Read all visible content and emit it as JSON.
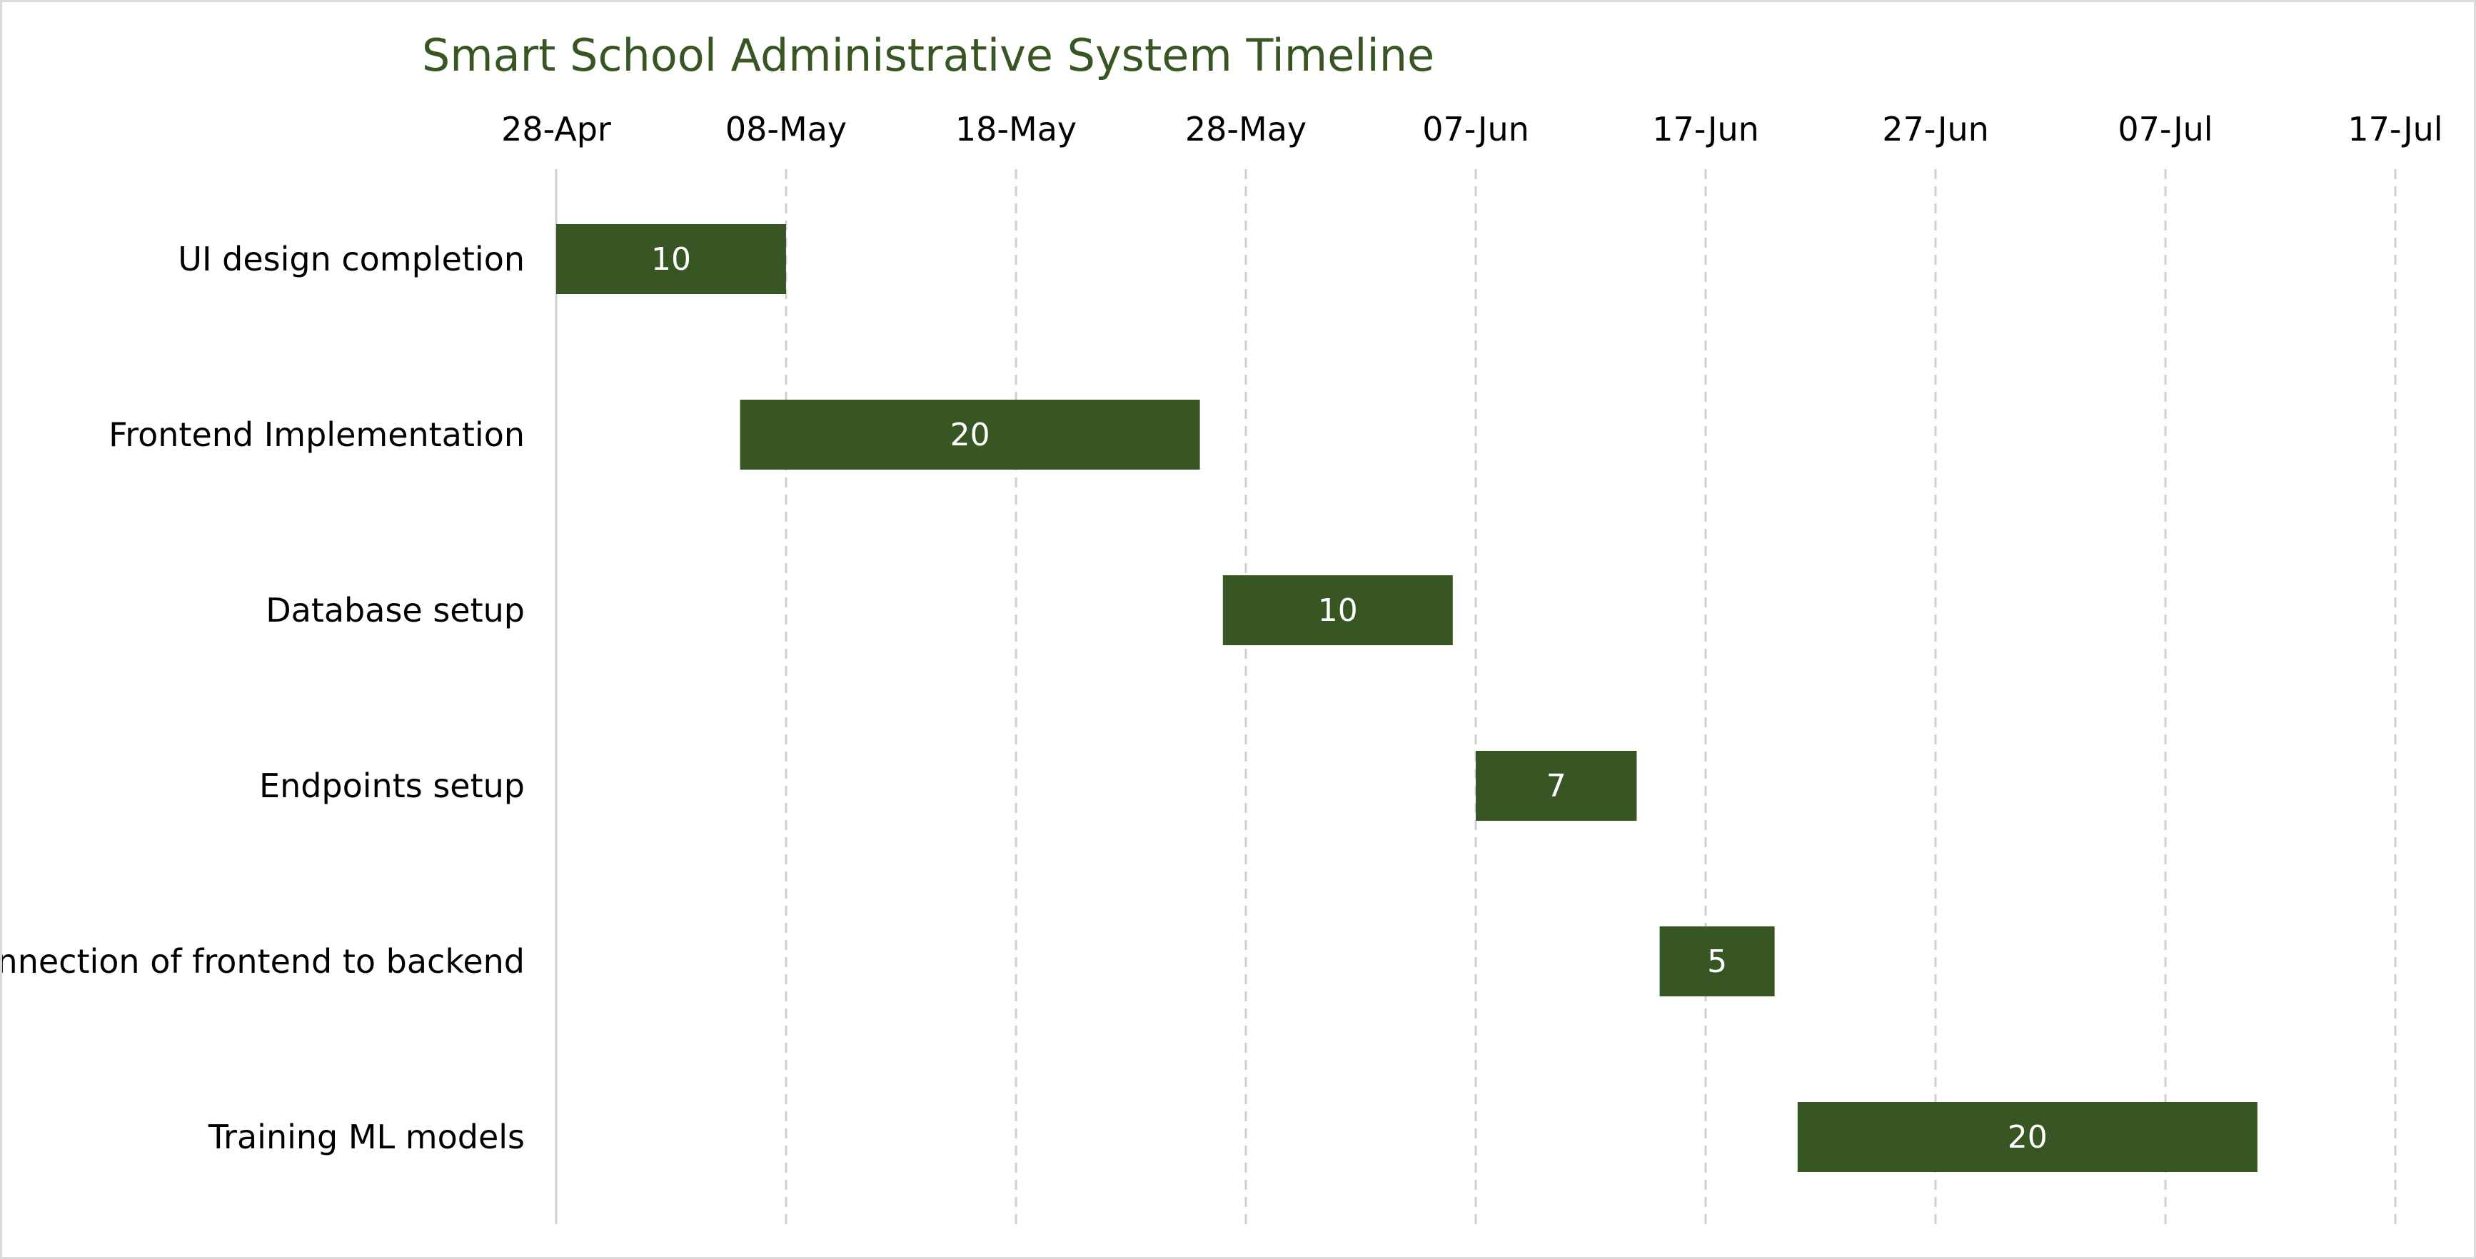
{
  "chart_data": {
    "type": "bar",
    "orientation": "horizontal",
    "style": "gantt",
    "title": "Smart School Administrative System Timeline",
    "x_axis": {
      "position": "top",
      "type": "date",
      "range": [
        "2024-04-28",
        "2024-07-17"
      ],
      "tick_interval_days": 10,
      "ticks": [
        "28-Apr",
        "08-May",
        "18-May",
        "28-May",
        "07-Jun",
        "17-Jun",
        "27-Jun",
        "07-Jul",
        "17-Jul"
      ],
      "gridlines": "dashed"
    },
    "categories": [
      "UI design completion",
      "Frontend Implementation",
      "Database setup",
      "Endpoints setup",
      "Connection of frontend to backend",
      "Training ML models"
    ],
    "series": [
      {
        "start": [
          "2024-04-28",
          "2024-05-06",
          "2024-05-27",
          "2024-06-07",
          "2024-06-15",
          "2024-06-21"
        ],
        "duration_days": [
          10,
          20,
          10,
          7,
          5,
          20
        ],
        "data_labels": [
          "10",
          "20",
          "10",
          "7",
          "5",
          "20"
        ]
      }
    ]
  },
  "colors": {
    "bar": "#375623",
    "title": "#375623",
    "gridline": "#d0d0d0",
    "axis_line": "#d0d0d0"
  }
}
